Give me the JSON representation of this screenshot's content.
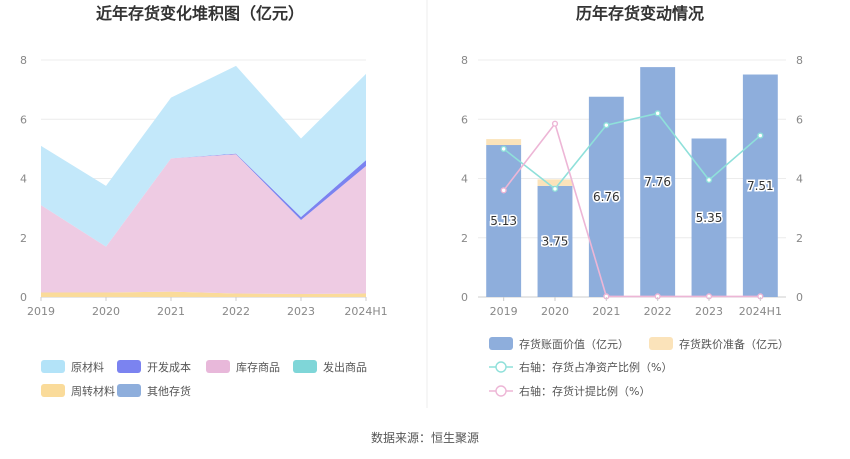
{
  "source": "数据来源：恒生聚源",
  "chart_data": [
    {
      "type": "area",
      "title": "近年存货变化堆积图（亿元）",
      "categories": [
        "2019",
        "2020",
        "2021",
        "2022",
        "2023",
        "2024H1"
      ],
      "ylim": [
        0,
        8
      ],
      "yticks": [
        "0",
        "2",
        "4",
        "6",
        "8"
      ],
      "stacked": true,
      "grid": true,
      "legend_position": "bottom",
      "series": [
        {
          "name": "周转材料",
          "color": "#fadb9a",
          "values": [
            0.15,
            0.15,
            0.18,
            0.12,
            0.1,
            0.12
          ]
        },
        {
          "name": "库存商品",
          "color": "#eecbe3",
          "values": [
            2.95,
            1.55,
            4.5,
            4.7,
            2.5,
            4.3
          ]
        },
        {
          "name": "开发成本",
          "color": "#7b83f0",
          "values": [
            0,
            0,
            0,
            0.02,
            0.1,
            0.2
          ]
        },
        {
          "name": "原材料",
          "color": "#c3e8fa",
          "values": [
            2.0,
            2.05,
            2.05,
            2.96,
            2.65,
            2.91
          ]
        },
        {
          "name": "发出商品",
          "color": "#7fd6d8",
          "values": [
            0,
            0,
            0,
            0,
            0,
            0
          ]
        },
        {
          "name": "其他存货",
          "color": "#8eaedc",
          "values": [
            0,
            0,
            0,
            0,
            0,
            0
          ]
        }
      ],
      "legend": [
        {
          "name": "原材料",
          "color": "#b3e3f8"
        },
        {
          "name": "开发成本",
          "color": "#7b83f0"
        },
        {
          "name": "库存商品",
          "color": "#e8b8da"
        },
        {
          "name": "发出商品",
          "color": "#7fd6d8"
        },
        {
          "name": "周转材料",
          "color": "#fadb9a"
        },
        {
          "name": "其他存货",
          "color": "#8eaedc"
        }
      ]
    },
    {
      "type": "bar",
      "title": "历年存货变动情况",
      "categories": [
        "2019",
        "2020",
        "2021",
        "2022",
        "2023",
        "2024H1"
      ],
      "ylim": [
        0,
        8
      ],
      "yticks": [
        "0",
        "2",
        "4",
        "6",
        "8"
      ],
      "y2lim": [
        0,
        8
      ],
      "y2ticks": [
        "0",
        "2",
        "4",
        "6",
        "8"
      ],
      "grid": true,
      "legend_position": "bottom",
      "bars": [
        {
          "name": "存货账面价值（亿元）",
          "color": "#8eaedc",
          "values": [
            5.13,
            3.75,
            6.76,
            7.76,
            5.35,
            7.51
          ],
          "labels": [
            "5.13",
            "3.75",
            "6.76",
            "7.76",
            "5.35",
            "7.51"
          ]
        },
        {
          "name": "存货跌价准备（亿元）",
          "color": "#fbe3ba",
          "values": [
            0.2,
            0.22,
            0,
            0,
            0,
            0
          ]
        }
      ],
      "lines": [
        {
          "name": "右轴：存货占净资产比例（%）",
          "color": "#8fe0da",
          "values": [
            5.0,
            3.65,
            5.8,
            6.2,
            3.95,
            5.45
          ]
        },
        {
          "name": "右轴：存货计提比例（%）",
          "color": "#edb6d6",
          "values": [
            3.6,
            5.85,
            0.02,
            0.02,
            0.02,
            0.02
          ]
        }
      ]
    }
  ]
}
